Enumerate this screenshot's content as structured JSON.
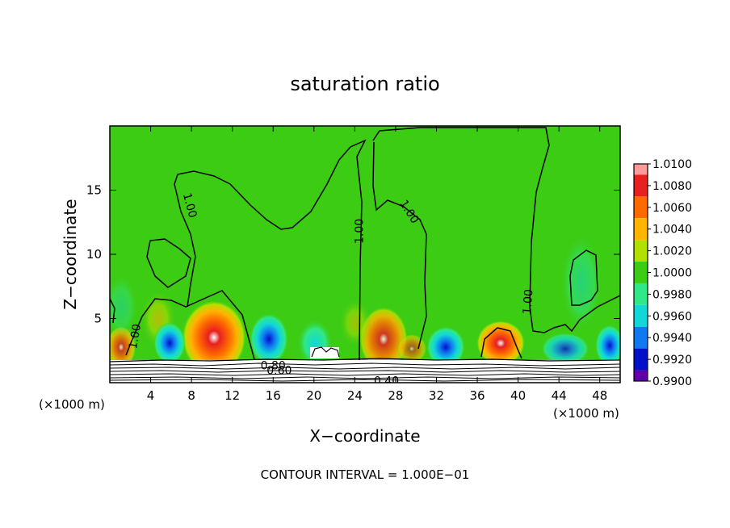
{
  "chart_data": {
    "type": "heatmap",
    "title": "saturation ratio",
    "xlabel": "X−coordinate",
    "ylabel": "Z−coordinate",
    "x_unit_left": "(×1000 m)",
    "x_unit_right": "(×1000 m)",
    "xlim": [
      0,
      50
    ],
    "ylim": [
      0,
      20
    ],
    "x_ticks": [
      4,
      8,
      12,
      16,
      20,
      24,
      28,
      32,
      36,
      40,
      44,
      48
    ],
    "y_ticks": [
      5,
      10,
      15
    ],
    "footer": "CONTOUR INTERVAL = 1.000E−01",
    "colorbar": {
      "levels": [
        "1.0100",
        "1.0080",
        "1.0060",
        "1.0040",
        "1.0020",
        "1.0000",
        "0.9980",
        "0.9960",
        "0.9940",
        "0.9920",
        "0.9900"
      ],
      "colors": [
        "#ff9a9a",
        "#e82020",
        "#ff6a00",
        "#ffb400",
        "#b4e000",
        "#3ccc14",
        "#30e888",
        "#10d8d8",
        "#1078f0",
        "#0010c8",
        "#6000a8"
      ]
    },
    "contour_labels": [
      {
        "text": "1.00",
        "x": 7.8,
        "z": 13.8,
        "rot": 75
      },
      {
        "text": "1.00",
        "x": 24.5,
        "z": 11.8,
        "rot": -90
      },
      {
        "text": "1.00",
        "x": 29.3,
        "z": 13.3,
        "rot": 58
      },
      {
        "text": "1.00",
        "x": 41.0,
        "z": 6.3,
        "rot": -85
      },
      {
        "text": "1.00",
        "x": 2.5,
        "z": 3.6,
        "rot": -80
      },
      {
        "text": "0.80",
        "x": 16.0,
        "z": 1.3,
        "rot": 0
      },
      {
        "text": "0.60",
        "x": 16.6,
        "z": 0.9,
        "rot": 0
      },
      {
        "text": "0.40",
        "x": 27.1,
        "z": 0.1,
        "rot": 0
      }
    ]
  }
}
